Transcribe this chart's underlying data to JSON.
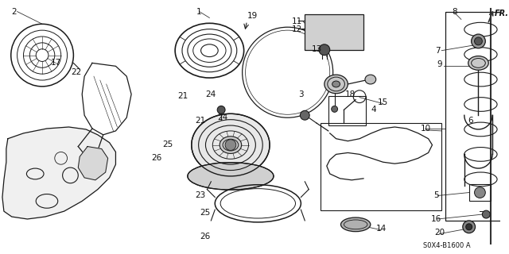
{
  "bg_color": "#ffffff",
  "part_number": "S0X4-B1600 A",
  "fr_label": "FR.",
  "line_color": "#1a1a1a",
  "text_color": "#111111",
  "font_size": 7.5,
  "figsize": [
    6.4,
    3.2
  ],
  "dpi": 100
}
